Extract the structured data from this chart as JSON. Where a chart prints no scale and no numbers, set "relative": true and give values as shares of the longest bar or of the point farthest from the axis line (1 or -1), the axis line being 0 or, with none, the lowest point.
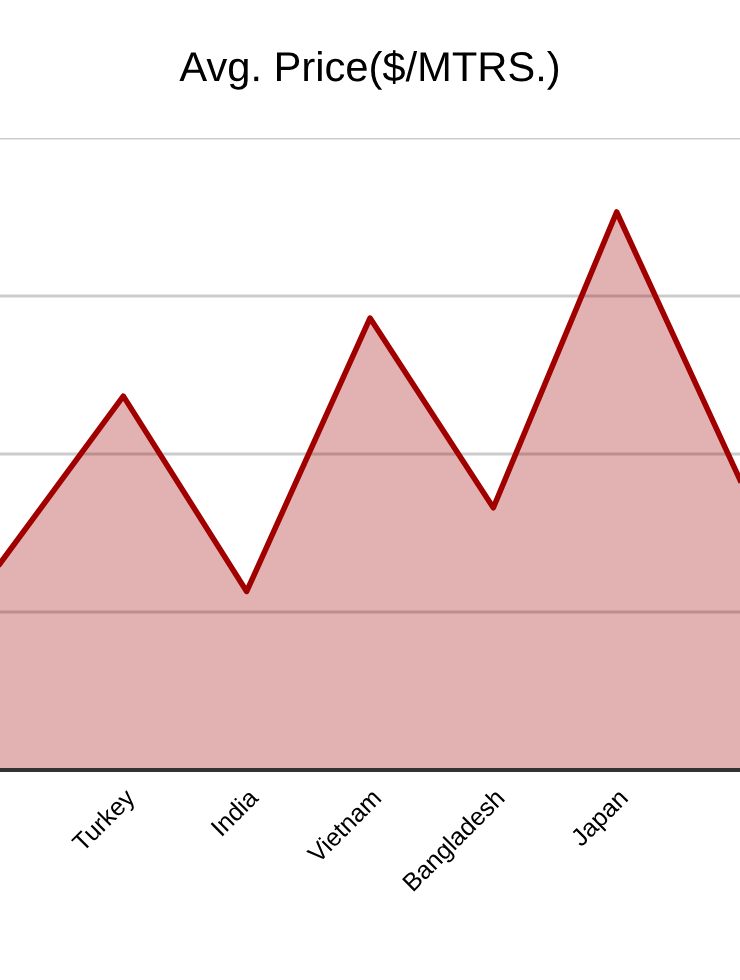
{
  "chart_data": {
    "type": "area",
    "title": "Avg. Price($/MTRS.)",
    "categories": [
      null,
      "Turkey",
      "India",
      "Vietnam",
      "Bangladesh",
      "Japan",
      null
    ],
    "series": [
      {
        "color": "#a00000",
        "values": [
          0.37,
          0.67,
          0.32,
          0.81,
          0.47,
          1,
          0.52
        ]
      }
    ],
    "relative": true,
    "grid": "y",
    "legend": false
  }
}
